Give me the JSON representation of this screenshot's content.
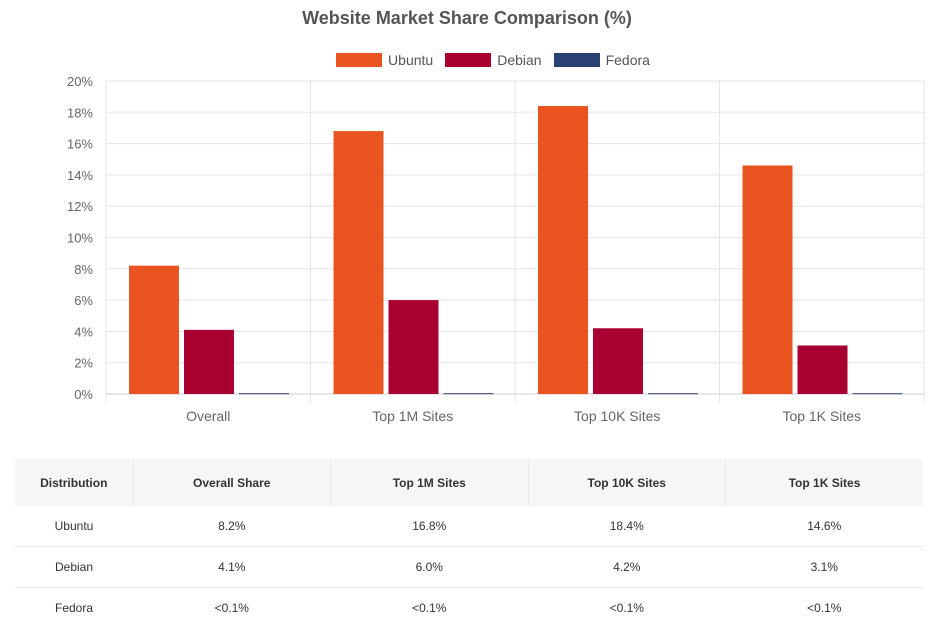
{
  "chart_data": {
    "type": "bar",
    "title": "Website Market Share Comparison (%)",
    "categories": [
      "Overall",
      "Top 1M Sites",
      "Top 10K Sites",
      "Top 1K Sites"
    ],
    "series": [
      {
        "name": "Ubuntu",
        "color": "#e95420",
        "values": [
          8.2,
          16.8,
          18.4,
          14.6
        ]
      },
      {
        "name": "Debian",
        "color": "#a80030",
        "values": [
          4.1,
          6.0,
          4.2,
          3.1
        ]
      },
      {
        "name": "Fedora",
        "color": "#294172",
        "values": [
          0.05,
          0.05,
          0.05,
          0.05
        ]
      }
    ],
    "ylim": [
      0,
      20
    ],
    "yticks": [
      "0%",
      "2%",
      "4%",
      "6%",
      "8%",
      "10%",
      "12%",
      "14%",
      "16%",
      "18%",
      "20%"
    ],
    "grid": true,
    "legend": "top"
  },
  "table": {
    "headers": [
      "Distribution",
      "Overall Share",
      "Top 1M Sites",
      "Top 10K Sites",
      "Top 1K Sites"
    ],
    "rows": [
      [
        "Ubuntu",
        "8.2%",
        "16.8%",
        "18.4%",
        "14.6%"
      ],
      [
        "Debian",
        "4.1%",
        "6.0%",
        "4.2%",
        "3.1%"
      ],
      [
        "Fedora",
        "<0.1%",
        "<0.1%",
        "<0.1%",
        "<0.1%"
      ]
    ]
  }
}
